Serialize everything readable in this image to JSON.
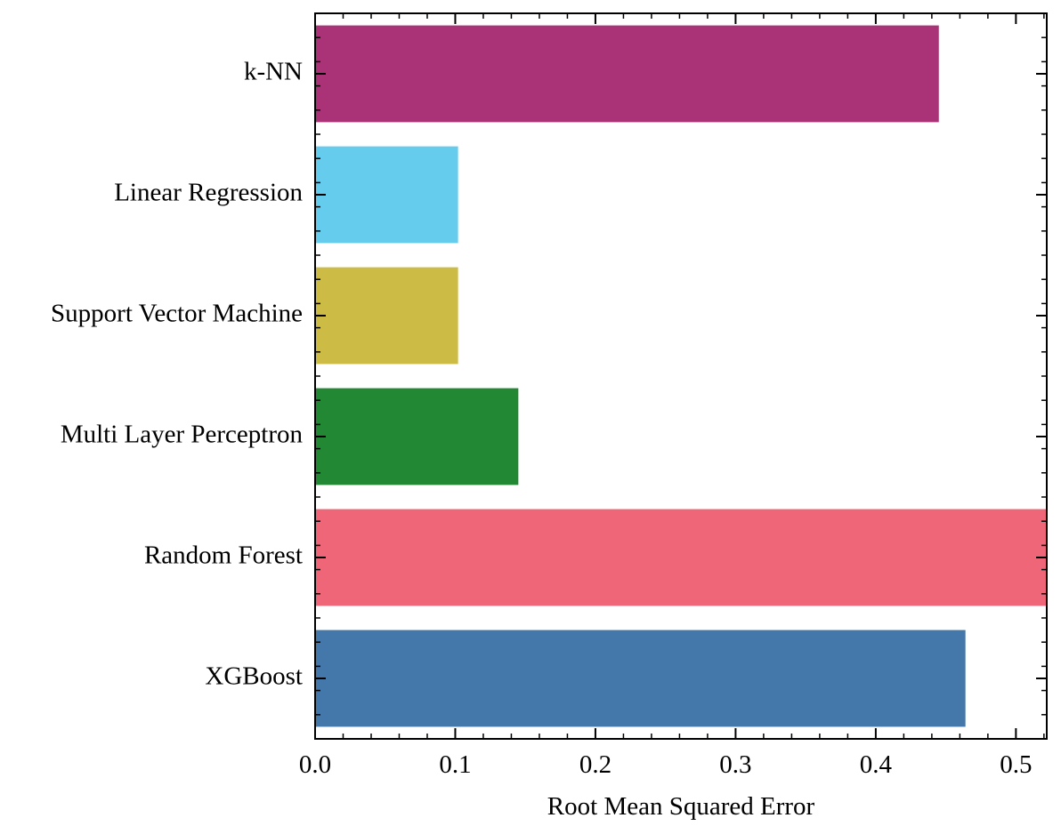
{
  "chart_data": {
    "type": "bar",
    "orientation": "horizontal",
    "title": "",
    "xlabel": "Root Mean Squared Error",
    "ylabel": "",
    "categories": [
      "k-NN",
      "Linear Regression",
      "Support Vector Machine",
      "Multi Layer Perceptron",
      "Random Forest",
      "XGBoost"
    ],
    "values": [
      0.445,
      0.102,
      0.102,
      0.145,
      0.53,
      0.464
    ],
    "colors": [
      "#aa3377",
      "#66ccee",
      "#ccbb44",
      "#228833",
      "#ee6677",
      "#4477aa"
    ],
    "xlim": [
      0.0,
      0.522
    ],
    "xticks": [
      0.0,
      0.1,
      0.2,
      0.3,
      0.4,
      0.5
    ],
    "xtick_labels": [
      "0.0",
      "0.1",
      "0.2",
      "0.3",
      "0.4",
      "0.5"
    ],
    "grid": false,
    "legend": "none"
  }
}
